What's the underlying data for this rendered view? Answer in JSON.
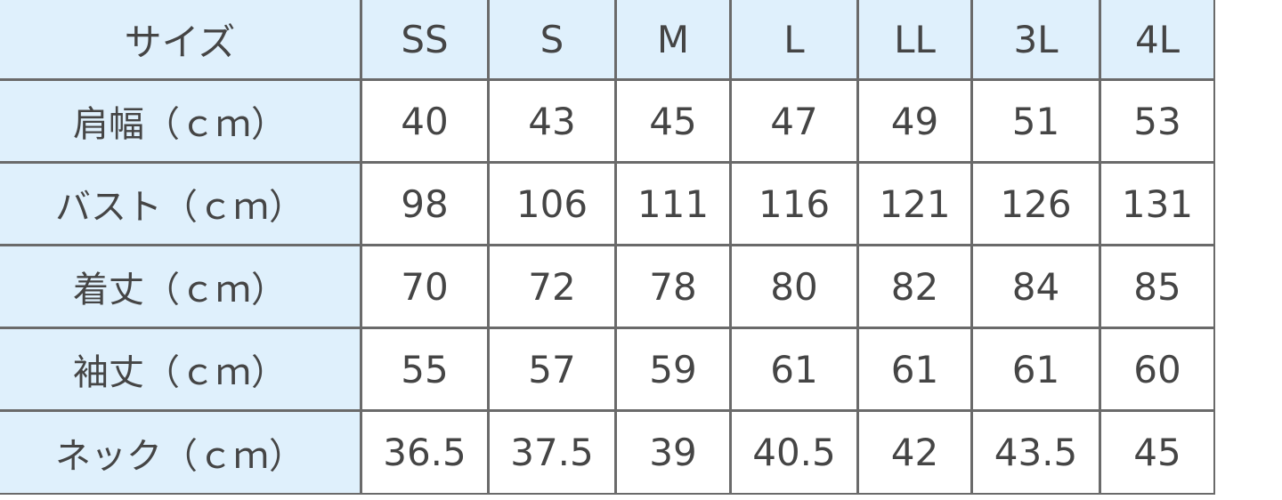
{
  "table": {
    "header": [
      "サイズ",
      "SS",
      "S",
      "M",
      "L",
      "LL",
      "3L",
      "4L"
    ],
    "rows": [
      [
        "肩幅（ｃｍ）",
        "40",
        "43",
        "45",
        "47",
        "49",
        "51",
        "53"
      ],
      [
        "バスト（ｃｍ）",
        "98",
        "106",
        "111",
        "116",
        "121",
        "126",
        "131"
      ],
      [
        "着丈（ｃｍ）",
        "70",
        "72",
        "78",
        "80",
        "82",
        "84",
        "85"
      ],
      [
        "袖丈（ｃｍ）",
        "55",
        "57",
        "59",
        "61",
        "61",
        "61",
        "60"
      ],
      [
        "ネック（ｃｍ）",
        "36.5",
        "37.5",
        "39",
        "40.5",
        "42",
        "43.5",
        "45"
      ]
    ]
  }
}
